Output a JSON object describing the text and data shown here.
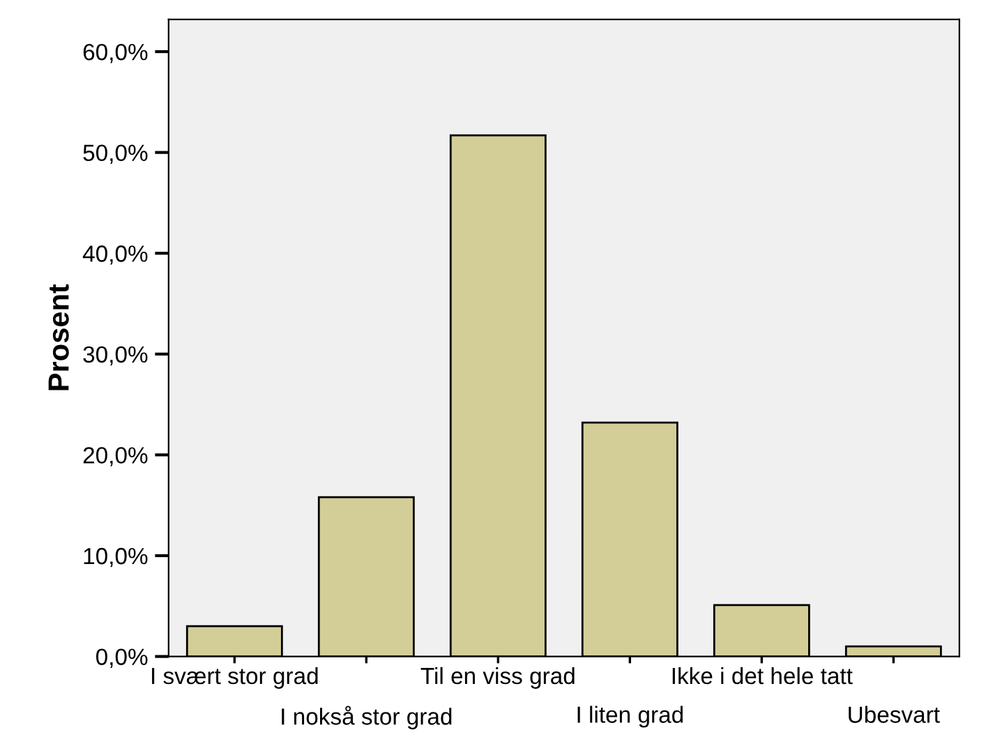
{
  "chart_data": {
    "type": "bar",
    "ylabel": "Prosent",
    "categories": [
      "I svært stor grad",
      "I nokså stor grad",
      "Til en viss grad",
      "I liten grad",
      "Ikke i det hele tatt",
      "Ubesvart"
    ],
    "values": [
      3.0,
      15.8,
      51.7,
      23.2,
      5.1,
      1.0
    ],
    "color": "#d3ce97",
    "ylim": [
      0,
      63.2
    ],
    "yticks": [
      {
        "value": 0,
        "label": "0,0%"
      },
      {
        "value": 10,
        "label": "10,0%"
      },
      {
        "value": 20,
        "label": "20,0%"
      },
      {
        "value": 30,
        "label": "30,0%"
      },
      {
        "value": 40,
        "label": "40,0%"
      },
      {
        "value": 50,
        "label": "50,0%"
      },
      {
        "value": 60,
        "label": "60,0%"
      }
    ],
    "grid": false
  }
}
